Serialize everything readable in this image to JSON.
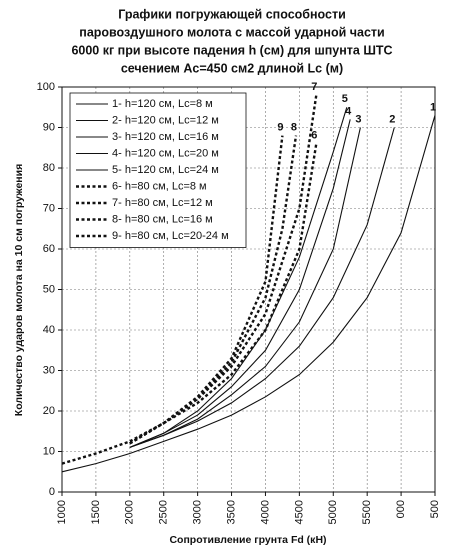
{
  "chart_data": {
    "type": "line",
    "title": [
      "Графики погружающей способности",
      "паровоздушного молота с массой ударной части",
      "6000 кг при высоте падения h (см) для шпунта ШТС",
      "сечением Ac=450 см2 длиной Lc (м)"
    ],
    "xlabel": "Сопротивление грунта Fd (кН)",
    "ylabel": "Количество ударов молота на 10 см погружения",
    "xlim": [
      1000,
      6500
    ],
    "ylim": [
      0,
      100
    ],
    "xticks": [
      1000,
      1500,
      2000,
      2500,
      3000,
      3500,
      4000,
      4500,
      5000,
      5500,
      {
        "value": 6000,
        "label": "000"
      },
      {
        "value": 6500,
        "label": "500"
      }
    ],
    "yticks": [
      0,
      10,
      20,
      30,
      40,
      50,
      60,
      70,
      80,
      90,
      100
    ],
    "grid": true,
    "legend": "upper left",
    "series": [
      {
        "name": "1- h=120 см, Lc=8 м",
        "end_label": "1",
        "color": "#111",
        "style": "solid",
        "x": [
          1000,
          1500,
          2000,
          2500,
          3000,
          3500,
          4000,
          4500,
          5000,
          5500,
          6000,
          6500
        ],
        "values": [
          5,
          7,
          9.5,
          12.5,
          15.5,
          19,
          23.5,
          29,
          37,
          48,
          64,
          93
        ]
      },
      {
        "name": "2- h=120 см, Lc=12 м",
        "end_label": "2",
        "color": "#111",
        "style": "solid",
        "x": [
          2000,
          2500,
          3000,
          3500,
          4000,
          4500,
          5000,
          5500,
          5900
        ],
        "values": [
          11,
          14,
          17.5,
          22,
          28,
          36,
          48,
          66,
          90
        ]
      },
      {
        "name": "3- h=120 см, Lc=16 м",
        "end_label": "3",
        "color": "#111",
        "style": "solid",
        "x": [
          2000,
          2500,
          3000,
          3500,
          4000,
          4500,
          5000,
          5400
        ],
        "values": [
          11,
          14,
          18,
          24,
          31,
          42,
          60,
          90
        ]
      },
      {
        "name": "4- h=120 см, Lc=20 м",
        "end_label": "4",
        "color": "#111",
        "style": "solid",
        "x": [
          2000,
          2500,
          3000,
          3500,
          4000,
          4500,
          5000,
          5250
        ],
        "values": [
          11,
          14.5,
          19,
          26,
          35,
          50,
          75,
          92
        ]
      },
      {
        "name": "5- h=120 см, Lc=24 м",
        "end_label": "5",
        "color": "#111",
        "style": "solid",
        "x": [
          2000,
          2500,
          3000,
          3500,
          4000,
          4500,
          5000,
          5200
        ],
        "values": [
          11,
          14.5,
          20,
          28,
          40,
          58,
          84,
          95
        ]
      },
      {
        "name": "6- h=80 см, Lc=8 м",
        "end_label": "6",
        "color": "#111",
        "style": "dashed",
        "x": [
          1000,
          1500,
          2000,
          2500,
          3000,
          3500,
          4000,
          4500,
          4750
        ],
        "values": [
          7,
          9.5,
          12.5,
          17,
          22,
          29,
          40,
          60,
          86
        ]
      },
      {
        "name": "7- h=80 см, Lc=12 м",
        "end_label": "7",
        "color": "#111",
        "style": "dashed",
        "x": [
          2000,
          2500,
          3000,
          3500,
          4000,
          4500,
          4750
        ],
        "values": [
          12,
          17,
          23,
          31,
          44,
          70,
          98
        ]
      },
      {
        "name": "8- h=80 см, Lc=16 м",
        "end_label": "8",
        "color": "#111",
        "style": "dashed",
        "x": [
          2000,
          2500,
          3000,
          3500,
          4000,
          4250,
          4450
        ],
        "values": [
          12,
          17,
          23,
          32,
          48,
          65,
          88
        ]
      },
      {
        "name": "9- h=80 см, Lc=20-24 м",
        "end_label": "9",
        "color": "#111",
        "style": "dashed",
        "x": [
          2000,
          2500,
          3000,
          3500,
          4000,
          4250
        ],
        "values": [
          12,
          17,
          23.5,
          33,
          52,
          88
        ]
      }
    ]
  }
}
